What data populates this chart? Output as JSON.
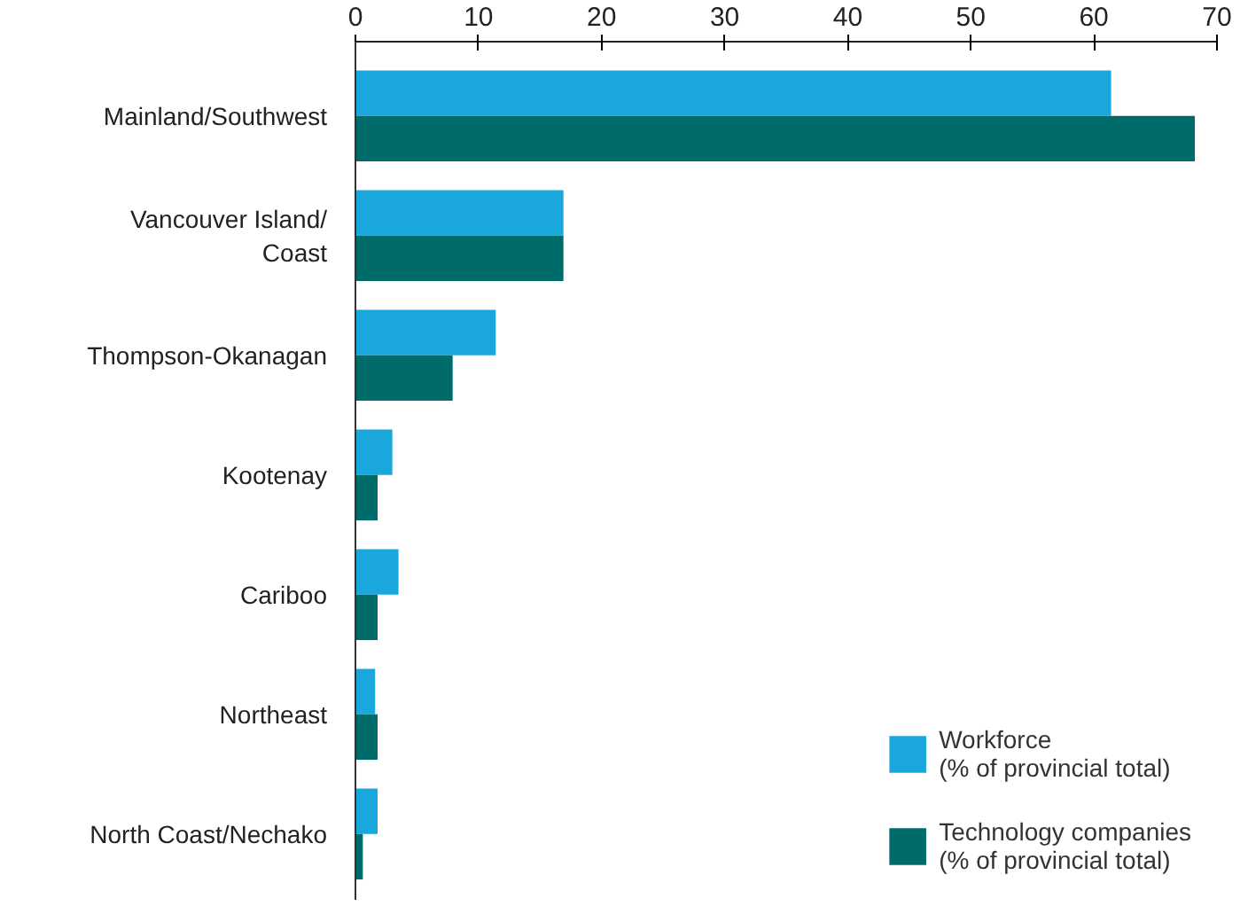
{
  "chart_data": {
    "type": "bar",
    "orientation": "horizontal",
    "categories": [
      "Mainland/Southwest",
      "Vancouver Island/\nCoast",
      "Thompson-Okanagan",
      "Kootenay",
      "Cariboo",
      "Northeast",
      "North Coast/Nechako"
    ],
    "series": [
      {
        "name": "Workforce\n(% of provincial total)",
        "color": "#1aa7dc",
        "values": [
          61.4,
          16.9,
          11.4,
          3.0,
          3.5,
          1.6,
          1.8
        ]
      },
      {
        "name": "Technology companies\n(% of provincial total)",
        "color": "#006b6b",
        "values": [
          68.2,
          16.9,
          7.9,
          1.8,
          1.8,
          1.8,
          0.6
        ]
      }
    ],
    "xlim": [
      0,
      70
    ],
    "xticks": [
      0,
      10,
      20,
      30,
      40,
      50,
      60,
      70
    ],
    "grid": false,
    "legend": "bottom right"
  }
}
